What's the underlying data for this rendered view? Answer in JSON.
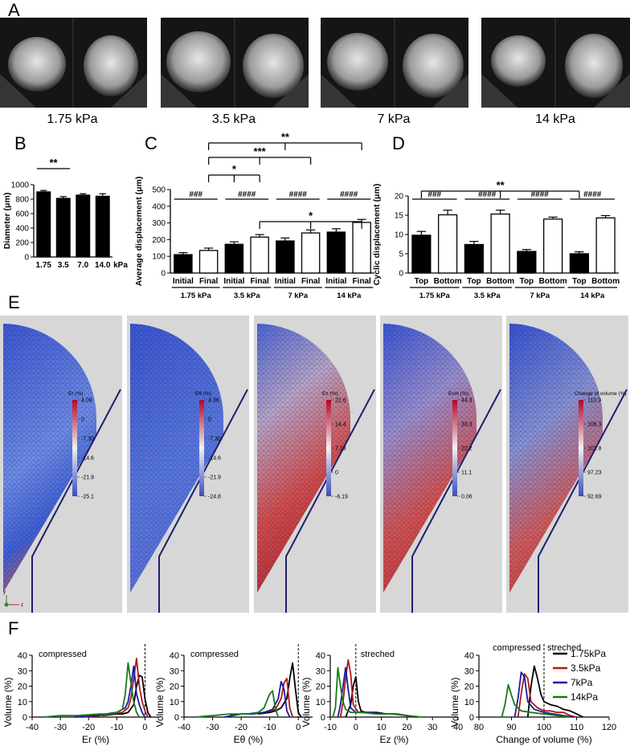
{
  "panel_labels": {
    "A": "A",
    "B": "B",
    "C": "C",
    "D": "D",
    "E": "E",
    "F": "F"
  },
  "panelA": {
    "conditions": [
      "1.75 kPa",
      "3.5 kPa",
      "7 kPa",
      "14 kPa"
    ]
  },
  "panelE": {
    "maps": [
      {
        "label": "Er (%)",
        "ticks": [
          "4.09",
          "0",
          "-7.30",
          "-14.6",
          "-21.9",
          "-25.1"
        ],
        "pattern": "er"
      },
      {
        "label": "Eθ (%)",
        "ticks": [
          "4.36",
          "0",
          "-7.30",
          "-14.6",
          "-21.9",
          "-24.8"
        ],
        "pattern": "eth"
      },
      {
        "label": "Ez (%)",
        "ticks": [
          "22.6",
          "14.4",
          "7.19",
          "0",
          "-6.19"
        ],
        "pattern": "ez"
      },
      {
        "label": "Evm (%)",
        "ticks": [
          "44.3",
          "33.3",
          "22.2",
          "11.1",
          "0.06"
        ],
        "pattern": "evm"
      },
      {
        "label": "Change of volume (%)",
        "ticks": [
          "110.9",
          "106.3",
          "101.8",
          "97.23",
          "92.69"
        ],
        "pattern": "vol"
      }
    ],
    "axis_labels": {
      "y": "y",
      "z": "z"
    }
  },
  "chart_data": [
    {
      "id": "B",
      "type": "bar",
      "ylabel": "Diameter (μm)",
      "ylim": [
        0,
        1000
      ],
      "yticks": [
        "0",
        "200",
        "400",
        "600",
        "800",
        "1000"
      ],
      "categories": [
        "1.75",
        "3.5",
        "7.0",
        "14.0"
      ],
      "unit_label": "kPa",
      "values": [
        900,
        810,
        855,
        840
      ],
      "errors": [
        20,
        25,
        20,
        35
      ],
      "significance": [
        {
          "from": 0,
          "to": 1,
          "label": "**"
        }
      ]
    },
    {
      "id": "C",
      "type": "bar",
      "ylabel": "Average displacement (μm)",
      "ylim": [
        0,
        500
      ],
      "yticks": [
        "0",
        "100",
        "200",
        "300",
        "400",
        "500"
      ],
      "categories": [
        "Initial",
        "Final",
        "Initial",
        "Final",
        "Initial",
        "Final",
        "Initial",
        "Final"
      ],
      "groups": [
        "1.75 kPa",
        "3.5 kPa",
        "7 kPa",
        "14 kPa"
      ],
      "values": [
        110,
        135,
        172,
        215,
        192,
        240,
        245,
        303
      ],
      "errors": [
        12,
        14,
        15,
        15,
        18,
        18,
        20,
        18
      ],
      "filled": [
        true,
        false,
        true,
        false,
        true,
        false,
        true,
        false
      ],
      "pair_significance": [
        "###",
        "####",
        "####",
        "####"
      ],
      "significance": [
        {
          "from": 1,
          "to": 7,
          "label": "**",
          "level": 1
        },
        {
          "from": 1,
          "to": 5,
          "label": "***",
          "level": 2
        },
        {
          "from": 1,
          "to": 3,
          "label": "*",
          "level": 3
        },
        {
          "from": 3,
          "to": 7,
          "label": "*",
          "level": 4
        }
      ]
    },
    {
      "id": "D",
      "type": "bar",
      "ylabel": "Cyclic displacement (μm)",
      "ylim": [
        0,
        20
      ],
      "yticks": [
        "0",
        "5",
        "10",
        "15",
        "20"
      ],
      "categories": [
        "Top",
        "Bottom",
        "Top",
        "Bottom",
        "Top",
        "Bottom",
        "Top",
        "Bottom"
      ],
      "groups": [
        "1.75 kPa",
        "3.5 kPa",
        "7 kPa",
        "14 kPa"
      ],
      "values": [
        9.8,
        15.1,
        7.4,
        15.3,
        5.6,
        14.0,
        5.0,
        14.3
      ],
      "errors": [
        1.0,
        1.2,
        0.8,
        1.0,
        0.5,
        0.5,
        0.5,
        0.6
      ],
      "filled": [
        true,
        false,
        true,
        false,
        true,
        false,
        true,
        false
      ],
      "pair_significance": [
        "###",
        "####",
        "####",
        "####"
      ],
      "significance": [
        {
          "from": 0,
          "to": 6,
          "label": "**",
          "level": 1
        }
      ]
    },
    {
      "id": "F1",
      "type": "line",
      "xlabel": "Er (%)",
      "ylabel": "Volume (%)",
      "xlim": [
        -40,
        5
      ],
      "ylim": [
        0,
        40
      ],
      "xticks": [
        -40,
        -30,
        -20,
        -10,
        0
      ],
      "yticks": [
        0,
        10,
        20,
        30,
        40
      ],
      "zero_line": 0,
      "annotations": [
        "compressed"
      ],
      "series": [
        {
          "name": "1.75kPa",
          "color": "#000000",
          "x": [
            -15,
            -10,
            -8,
            -6,
            -4,
            -3,
            -2,
            -1,
            0,
            1,
            2
          ],
          "y": [
            1,
            2,
            2,
            3,
            8,
            20,
            27,
            26,
            12,
            3,
            0
          ]
        },
        {
          "name": "3.5kPa",
          "color": "#b01818",
          "x": [
            -22,
            -16,
            -12,
            -8,
            -6,
            -5,
            -4,
            -3,
            -2,
            -1,
            0,
            1
          ],
          "y": [
            0,
            1,
            2,
            3,
            6,
            12,
            25,
            38,
            20,
            10,
            4,
            0
          ]
        },
        {
          "name": "7kPa",
          "color": "#1a1a9e",
          "x": [
            -25,
            -18,
            -14,
            -10,
            -7,
            -6,
            -5,
            -4,
            -3,
            -2,
            -1,
            0
          ],
          "y": [
            0,
            1,
            2,
            3,
            6,
            10,
            20,
            33,
            15,
            8,
            3,
            0
          ]
        },
        {
          "name": "14kPa",
          "color": "#197a19",
          "x": [
            -36,
            -30,
            -24,
            -16,
            -12,
            -10,
            -8,
            -7,
            -6,
            -5,
            -4,
            -3,
            -2
          ],
          "y": [
            0,
            1,
            1,
            2,
            2,
            3,
            5,
            15,
            35,
            22,
            10,
            3,
            0
          ]
        }
      ]
    },
    {
      "id": "F2",
      "type": "line",
      "xlabel": "Eθ (%)",
      "ylabel": "Volume (%)",
      "xlim": [
        -40,
        5
      ],
      "ylim": [
        0,
        40
      ],
      "xticks": [
        -40,
        -30,
        -20,
        -10,
        0
      ],
      "yticks": [
        0,
        10,
        20,
        30,
        40
      ],
      "zero_line": 0,
      "annotations": [
        "compressed"
      ],
      "series": [
        {
          "name": "1.75kPa",
          "color": "#000000",
          "x": [
            -14,
            -10,
            -8,
            -6,
            -4,
            -3,
            -2,
            -1,
            0,
            1
          ],
          "y": [
            2,
            3,
            4,
            6,
            12,
            25,
            35,
            18,
            3,
            0
          ]
        },
        {
          "name": "3.5kPa",
          "color": "#b01818",
          "x": [
            -24,
            -20,
            -16,
            -12,
            -8,
            -6,
            -5,
            -4,
            -3,
            -2
          ],
          "y": [
            1,
            2,
            2,
            3,
            5,
            12,
            22,
            25,
            6,
            0
          ]
        },
        {
          "name": "7kPa",
          "color": "#1a1a9e",
          "x": [
            -26,
            -20,
            -16,
            -12,
            -9,
            -7,
            -6,
            -5,
            -4,
            -3
          ],
          "y": [
            0,
            2,
            2,
            3,
            5,
            12,
            23,
            18,
            4,
            0
          ]
        },
        {
          "name": "14kPa",
          "color": "#197a19",
          "x": [
            -36,
            -30,
            -24,
            -18,
            -14,
            -12,
            -10,
            -9,
            -8,
            -7
          ],
          "y": [
            0,
            1,
            2,
            2,
            3,
            6,
            15,
            17,
            5,
            0
          ]
        }
      ]
    },
    {
      "id": "F3",
      "type": "line",
      "xlabel": "Ez (%)",
      "ylabel": "Volume (%)",
      "xlim": [
        -10,
        40
      ],
      "ylim": [
        0,
        40
      ],
      "xticks": [
        -10,
        0,
        10,
        20,
        30,
        40
      ],
      "yticks": [
        0,
        10,
        20,
        30,
        40
      ],
      "zero_line": 0,
      "annotations": [
        "streched"
      ],
      "series": [
        {
          "name": "1.75kPa",
          "color": "#000000",
          "x": [
            -4,
            -2,
            -1,
            0,
            1,
            2,
            4,
            8,
            12,
            16,
            20,
            24
          ],
          "y": [
            0,
            8,
            20,
            26,
            10,
            4,
            3,
            3,
            2,
            2,
            1,
            0
          ]
        },
        {
          "name": "3.5kPa",
          "color": "#b01818",
          "x": [
            -6,
            -5,
            -4,
            -3,
            -2,
            -1,
            1,
            5,
            10,
            15,
            20,
            22
          ],
          "y": [
            0,
            10,
            25,
            37,
            28,
            8,
            3,
            3,
            2,
            2,
            1,
            0
          ]
        },
        {
          "name": "7kPa",
          "color": "#1a1a9e",
          "x": [
            -7,
            -6,
            -5,
            -4,
            -3,
            -2,
            0,
            5,
            10,
            15,
            20,
            23
          ],
          "y": [
            0,
            8,
            20,
            32,
            18,
            6,
            3,
            3,
            2,
            2,
            1,
            0
          ]
        },
        {
          "name": "14kPa",
          "color": "#197a19",
          "x": [
            -9,
            -8,
            -7,
            -6,
            -5,
            -4,
            -2,
            2,
            8,
            14,
            20,
            26
          ],
          "y": [
            0,
            6,
            32,
            20,
            10,
            5,
            3,
            3,
            2,
            2,
            1,
            0
          ]
        }
      ]
    },
    {
      "id": "F4",
      "type": "line",
      "xlabel": "Change of volume (%)",
      "ylabel": "Volume (%)",
      "xlim": [
        80,
        120
      ],
      "ylim": [
        0,
        40
      ],
      "xticks": [
        80,
        90,
        100,
        110,
        120
      ],
      "yticks": [
        0,
        10,
        20,
        30,
        40
      ],
      "zero_line": 100,
      "annotations": [
        "compressed",
        "streched"
      ],
      "legend": "right",
      "series": [
        {
          "name": "1.75kPa",
          "color": "#000000",
          "x": [
            95,
            96,
            97,
            98,
            99,
            100,
            102,
            104,
            106,
            108,
            110,
            112
          ],
          "y": [
            0,
            20,
            33,
            25,
            15,
            10,
            8,
            7,
            5,
            4,
            2,
            0
          ]
        },
        {
          "name": "3.5kPa",
          "color": "#b01818",
          "x": [
            92,
            93,
            94,
            95,
            96,
            98,
            100,
            102,
            104,
            106,
            108,
            110
          ],
          "y": [
            0,
            15,
            28,
            25,
            10,
            6,
            4,
            4,
            3,
            3,
            1,
            0
          ]
        },
        {
          "name": "7kPa",
          "color": "#1a1a9e",
          "x": [
            91,
            92,
            93,
            94,
            95,
            97,
            100,
            103,
            106,
            109
          ],
          "y": [
            0,
            12,
            29,
            26,
            10,
            5,
            3,
            2,
            1,
            0
          ]
        },
        {
          "name": "14kPa",
          "color": "#197a19",
          "x": [
            87,
            88,
            89,
            90,
            91,
            93,
            96,
            100,
            104,
            108
          ],
          "y": [
            0,
            8,
            21,
            14,
            8,
            4,
            3,
            2,
            1,
            0
          ]
        }
      ]
    }
  ]
}
